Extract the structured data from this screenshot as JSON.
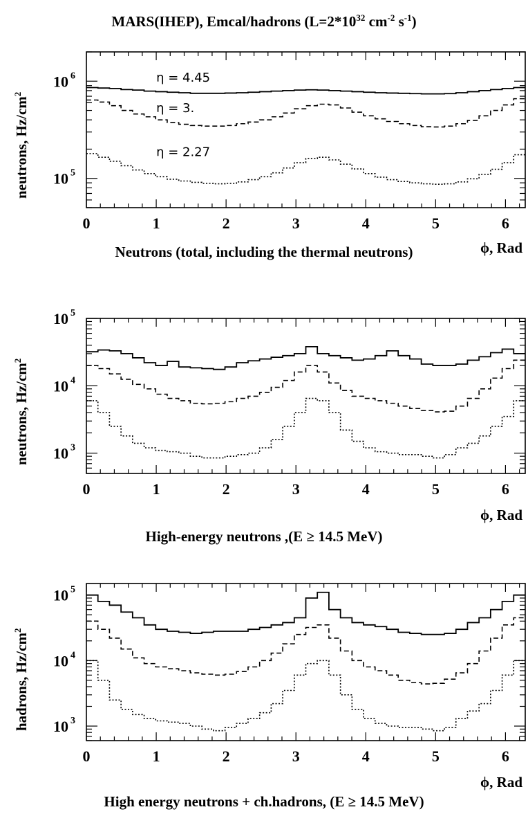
{
  "figure": {
    "title_pre": "MARS(IHEP), Emcal/hadrons (L=2*10",
    "title_exp1": "32",
    "title_mid": " cm",
    "title_exp2": "-2",
    "title_mid2": " s",
    "title_exp3": "-1",
    "title_post": ")"
  },
  "chart_data": [
    {
      "type": "line",
      "title": "Neutrons (total, including the thermal neutrons)",
      "xlabel": "ϕ, Rad",
      "ylabel_pre": "neutrons, Hz/cm",
      "ylabel_exp": "2",
      "yscale": "log",
      "xlim": [
        0,
        6.283
      ],
      "ylim": [
        50000,
        2000000
      ],
      "x_ticks": [
        "0",
        "1",
        "2",
        "3",
        "4",
        "5",
        "6"
      ],
      "y_ticks": [
        {
          "value": 100000,
          "base": "10",
          "exp": "5"
        },
        {
          "value": 1000000,
          "base": "10",
          "exp": "6"
        }
      ],
      "annotations": [
        {
          "text": "η = 4.45",
          "x": 1.0,
          "y": 990000
        },
        {
          "text": "η = 3.",
          "x": 1.0,
          "y": 480000
        },
        {
          "text": "η = 2.27",
          "x": 1.0,
          "y": 170000
        }
      ],
      "series": [
        {
          "style": "solid",
          "values": [
            860000,
            850000,
            840000,
            820000,
            810000,
            790000,
            780000,
            770000,
            760000,
            750000,
            750000,
            750000,
            755000,
            760000,
            770000,
            780000,
            790000,
            800000,
            810000,
            815000,
            810000,
            800000,
            790000,
            780000,
            770000,
            760000,
            755000,
            750000,
            745000,
            740000,
            740000,
            745000,
            760000,
            780000,
            800000,
            820000,
            840000,
            860000
          ]
        },
        {
          "style": "dashed",
          "values": [
            640000,
            610000,
            560000,
            500000,
            460000,
            430000,
            400000,
            375000,
            360000,
            350000,
            345000,
            345000,
            350000,
            365000,
            380000,
            400000,
            430000,
            470000,
            520000,
            560000,
            580000,
            570000,
            530000,
            480000,
            440000,
            410000,
            385000,
            365000,
            350000,
            340000,
            338000,
            345000,
            365000,
            395000,
            440000,
            500000,
            570000,
            660000
          ]
        },
        {
          "style": "dotted",
          "values": [
            180000,
            165000,
            150000,
            135000,
            122000,
            112000,
            104000,
            98000,
            94000,
            91000,
            89000,
            88000,
            89000,
            92000,
            97000,
            104000,
            114000,
            128000,
            145000,
            160000,
            165000,
            155000,
            140000,
            125000,
            112000,
            103000,
            97000,
            93000,
            90000,
            88000,
            87000,
            88000,
            92000,
            99000,
            110000,
            124000,
            145000,
            175000
          ]
        }
      ]
    },
    {
      "type": "line",
      "title": "High-energy neutrons ,(E ≥ 14.5 MeV)",
      "xlabel": "ϕ, Rad",
      "ylabel_pre": "neutrons, Hz/cm",
      "ylabel_exp": "2",
      "yscale": "log",
      "xlim": [
        0,
        6.283
      ],
      "ylim": [
        500,
        100000
      ],
      "x_ticks": [
        "0",
        "1",
        "2",
        "3",
        "4",
        "5",
        "6"
      ],
      "y_ticks": [
        {
          "value": 1000,
          "base": "10",
          "exp": "3"
        },
        {
          "value": 10000,
          "base": "10",
          "exp": "4"
        },
        {
          "value": 100000,
          "base": "10",
          "exp": "5"
        }
      ],
      "annotations": [],
      "series": [
        {
          "style": "solid",
          "values": [
            32000,
            34000,
            33000,
            30000,
            26000,
            22000,
            20000,
            23000,
            19000,
            18500,
            18000,
            17500,
            19000,
            22000,
            23500,
            25000,
            26500,
            28000,
            30000,
            38000,
            30000,
            28000,
            26000,
            24000,
            25000,
            28000,
            33000,
            28000,
            25000,
            21000,
            20000,
            20000,
            21000,
            24000,
            27000,
            31000,
            35000,
            30000
          ]
        },
        {
          "style": "dashed",
          "values": [
            20000,
            18000,
            15000,
            12500,
            10500,
            9000,
            7500,
            6500,
            6000,
            5500,
            5400,
            5500,
            5800,
            6500,
            7000,
            8000,
            9500,
            12000,
            16000,
            20000,
            16000,
            11000,
            8500,
            7000,
            6500,
            6000,
            5500,
            5000,
            4600,
            4300,
            4100,
            4200,
            5000,
            6500,
            9000,
            13000,
            18000,
            24000
          ]
        },
        {
          "style": "dotted",
          "values": [
            6000,
            4000,
            2500,
            1800,
            1400,
            1200,
            1100,
            1050,
            1000,
            900,
            850,
            850,
            900,
            950,
            1000,
            1200,
            1600,
            2500,
            4000,
            6500,
            6000,
            4000,
            2200,
            1500,
            1200,
            1050,
            1000,
            950,
            950,
            900,
            850,
            950,
            1200,
            1400,
            1800,
            2500,
            3500,
            6000
          ]
        }
      ]
    },
    {
      "type": "line",
      "title": "High energy neutrons + ch.hadrons, (E ≥ 14.5 MeV)",
      "xlabel": "ϕ, Rad",
      "ylabel_pre": "hadrons, Hz/cm",
      "ylabel_exp": "2",
      "yscale": "log",
      "xlim": [
        0,
        6.283
      ],
      "ylim": [
        600,
        150000
      ],
      "x_ticks": [
        "0",
        "1",
        "2",
        "3",
        "4",
        "5",
        "6"
      ],
      "y_ticks": [
        {
          "value": 1000,
          "base": "10",
          "exp": "3"
        },
        {
          "value": 10000,
          "base": "10",
          "exp": "4"
        },
        {
          "value": 100000,
          "base": "10",
          "exp": "5"
        }
      ],
      "annotations": [],
      "series": [
        {
          "style": "solid",
          "values": [
            100000,
            80000,
            70000,
            55000,
            45000,
            35000,
            30000,
            28000,
            27000,
            26000,
            27000,
            28000,
            28000,
            28000,
            30000,
            32000,
            35000,
            38000,
            45000,
            90000,
            110000,
            60000,
            45000,
            38000,
            35000,
            33000,
            30000,
            27000,
            26000,
            25000,
            25000,
            26000,
            30000,
            38000,
            45000,
            60000,
            80000,
            100000
          ]
        },
        {
          "style": "dashed",
          "values": [
            40000,
            30000,
            22000,
            15000,
            11000,
            9000,
            8000,
            7500,
            7000,
            6500,
            6200,
            6000,
            6200,
            6800,
            8000,
            10000,
            13000,
            18000,
            25000,
            32000,
            35000,
            22000,
            14000,
            10000,
            8000,
            7000,
            6000,
            5000,
            4600,
            4400,
            4500,
            5200,
            6500,
            9000,
            14000,
            22000,
            35000,
            45000
          ]
        },
        {
          "style": "dotted",
          "values": [
            10000,
            5000,
            2500,
            1800,
            1500,
            1300,
            1200,
            1150,
            1100,
            1000,
            900,
            850,
            950,
            1100,
            1300,
            1600,
            2200,
            3500,
            6000,
            9000,
            10000,
            6000,
            3000,
            1800,
            1300,
            1100,
            1000,
            950,
            950,
            900,
            850,
            950,
            1300,
            1700,
            2200,
            3500,
            6000,
            10000
          ]
        }
      ]
    }
  ]
}
